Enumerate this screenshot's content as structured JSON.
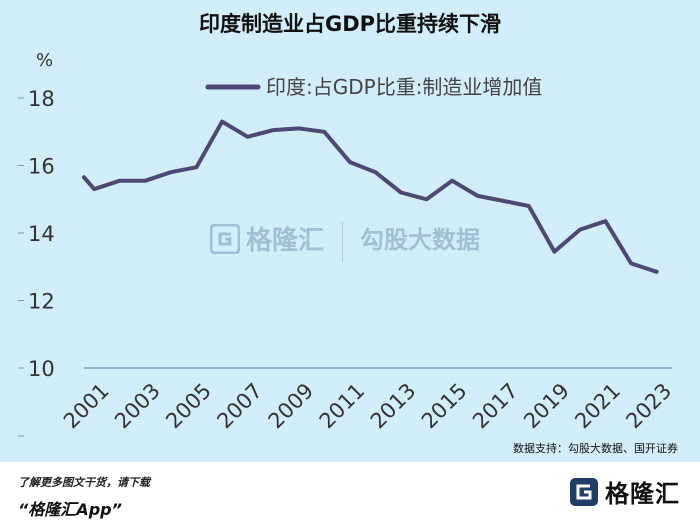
{
  "chart_data": {
    "type": "line",
    "title": "印度制造业占GDP比重持续下滑",
    "ylabel": "%",
    "ylim": [
      10,
      19
    ],
    "yticks": [
      10,
      12,
      14,
      16,
      18
    ],
    "xlim": [
      2000.6,
      2023.6
    ],
    "xticks": [
      2001,
      2003,
      2005,
      2007,
      2009,
      2011,
      2013,
      2015,
      2017,
      2019,
      2021,
      2023
    ],
    "grid": false,
    "legend_position": "top",
    "series": [
      {
        "name": "印度:占GDP比重:制造业增加值",
        "color": "#4e4874",
        "x": [
          2000.6,
          2001,
          2002,
          2003,
          2004,
          2005,
          2006,
          2007,
          2008,
          2009,
          2010,
          2011,
          2012,
          2013,
          2014,
          2015,
          2016,
          2017,
          2018,
          2019,
          2020,
          2021,
          2022,
          2023
        ],
        "values": [
          15.65,
          15.3,
          15.55,
          15.55,
          15.8,
          15.95,
          17.3,
          16.85,
          17.05,
          17.1,
          17.0,
          16.1,
          15.8,
          15.2,
          15.0,
          15.55,
          15.1,
          14.95,
          14.8,
          13.45,
          14.1,
          14.35,
          13.1,
          12.85
        ]
      }
    ]
  },
  "source_note": "数据支持：勾股大数据、国开证券",
  "footer": {
    "promo": "了解更多图文干货，请下载",
    "app_name": "“格隆汇App”",
    "logo_text": "格隆汇"
  },
  "watermark": {
    "brand": "格隆汇",
    "brand_url": "www.gelonghui.com",
    "partner": "勾股大数据",
    "partner_url": "www.gogudata.com"
  }
}
